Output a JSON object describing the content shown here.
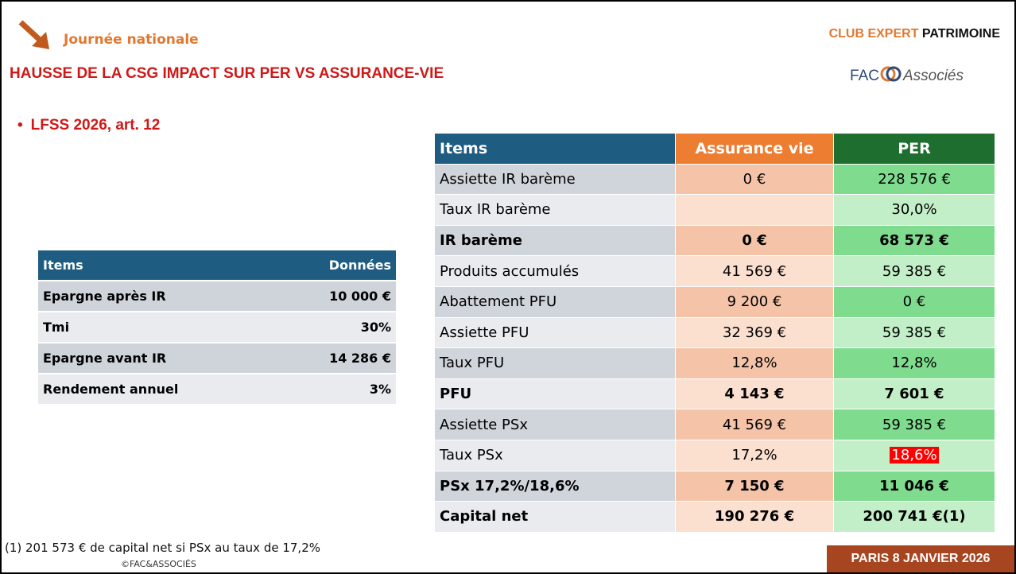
{
  "header": {
    "kicker": "Journée nationale",
    "title": "HAUSSE DE LA CSG  IMPACT SUR PER VS ASSURANCE-VIE",
    "club": "CLUB EXPERT",
    "club_strong": "PATRIMOINE",
    "logo_left": "FAC",
    "logo_right": "Associés"
  },
  "bullet": "LFSS 2026, art. 12",
  "left_table": {
    "header": [
      "Items",
      "Données"
    ],
    "rows": [
      [
        "Epargne après IR",
        "10 000 €"
      ],
      [
        "Tmi",
        "30%"
      ],
      [
        "Epargne avant IR",
        "14 286 €"
      ],
      [
        "Rendement  annuel",
        "3%"
      ]
    ]
  },
  "right_table": {
    "header": [
      "Items",
      "Assurance vie",
      "PER"
    ],
    "rows": [
      [
        "Assiette IR barème",
        "0 €",
        "228 576 €"
      ],
      [
        "Taux IR barème",
        "",
        "30,0%"
      ],
      [
        "IR barème",
        "0 €",
        "68 573 €"
      ],
      [
        "Produits accumulés",
        "41 569 €",
        "59 385 €"
      ],
      [
        "Abattement PFU",
        "9 200 €",
        "0 €"
      ],
      [
        "Assiette PFU",
        "32 369 €",
        "59 385 €"
      ],
      [
        "Taux PFU",
        "12,8%",
        "12,8%"
      ],
      [
        "PFU",
        "4 143 €",
        "7 601 €"
      ],
      [
        "Assiette PSx",
        "41 569 €",
        "59 385 €"
      ],
      [
        "Taux PSx",
        "17,2%",
        "18,6%"
      ],
      [
        "PSx 17,2%/18,6%",
        "7 150 €",
        "11 046 €"
      ],
      [
        "Capital net",
        "190 276 €",
        "200 741 €(1)"
      ]
    ]
  },
  "footnote": "(1) 201 573 € de capital net si PSx au taux de 17,2%",
  "copyright": "©FAC&ASSOCIÉS",
  "badge": "PARIS 8 JANVIER 2026"
}
